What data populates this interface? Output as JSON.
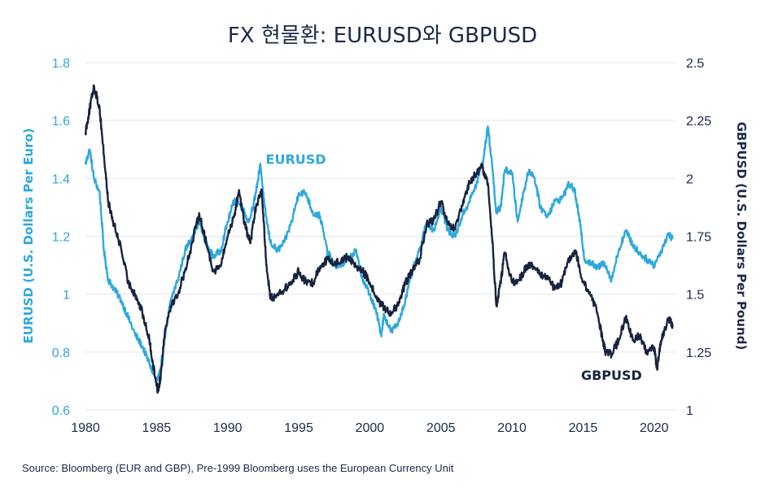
{
  "title": "FX 현물환: EURUSD와 GBPUSD",
  "source": "Source: Bloomberg (EUR and GBP), Pre-1999 Bloomberg uses the European Currency Unit",
  "colors": {
    "eurusd": "#2fa8dc",
    "gbpusd": "#17233f",
    "grid": "#e3e6ea",
    "text": "#1b2a4a"
  },
  "chart_data": {
    "type": "line",
    "title": "FX 현물환: EURUSD와 GBPUSD",
    "xlim": [
      1980,
      2021.5
    ],
    "x_ticks": [
      1980,
      1985,
      1990,
      1995,
      2000,
      2005,
      2010,
      2015,
      2020
    ],
    "x_tick_labels": [
      "1980",
      "1985",
      "1990",
      "1995",
      "2000",
      "2005",
      "2010",
      "2015",
      "2020"
    ],
    "y_left": {
      "label": "EURUSD (U.S. Dollars Per Euro)",
      "lim": [
        0.6,
        1.8
      ],
      "ticks": [
        0.6,
        0.8,
        1.0,
        1.2,
        1.4,
        1.6,
        1.8
      ],
      "tick_labels": [
        "0.6",
        "0.8",
        "1",
        "1.2",
        "1.4",
        "1.6",
        "1.8"
      ]
    },
    "y_right": {
      "label": "GBPUSD (U.S. Dollars Per Pound)",
      "lim": [
        1.0,
        2.5
      ],
      "ticks": [
        1.0,
        1.25,
        1.5,
        1.75,
        2.0,
        2.25,
        2.5
      ],
      "tick_labels": [
        "1",
        "1.25",
        "1.5",
        "1.75",
        "2",
        "2.25",
        "2.5"
      ]
    },
    "grid": true,
    "series": [
      {
        "name": "EURUSD",
        "axis": "left",
        "x": [
          1980.0,
          1980.3,
          1980.6,
          1981.0,
          1981.3,
          1981.6,
          1982.0,
          1982.5,
          1983.0,
          1983.5,
          1984.0,
          1984.5,
          1985.0,
          1985.2,
          1985.5,
          1986.0,
          1986.5,
          1987.0,
          1987.5,
          1988.0,
          1988.5,
          1989.0,
          1989.5,
          1990.0,
          1990.5,
          1991.0,
          1991.5,
          1992.0,
          1992.3,
          1992.6,
          1993.0,
          1993.5,
          1994.0,
          1994.5,
          1995.0,
          1995.5,
          1996.0,
          1996.5,
          1997.0,
          1997.5,
          1998.0,
          1998.5,
          1999.0,
          1999.5,
          2000.0,
          2000.5,
          2000.8,
          2001.0,
          2001.5,
          2002.0,
          2002.5,
          2003.0,
          2003.5,
          2004.0,
          2004.5,
          2005.0,
          2005.5,
          2006.0,
          2006.5,
          2007.0,
          2007.5,
          2008.0,
          2008.3,
          2008.6,
          2008.9,
          2009.2,
          2009.5,
          2010.0,
          2010.4,
          2010.8,
          2011.2,
          2011.6,
          2012.0,
          2012.5,
          2013.0,
          2013.5,
          2014.0,
          2014.4,
          2014.8,
          2015.1,
          2015.5,
          2016.0,
          2016.5,
          2017.0,
          2017.5,
          2018.0,
          2018.5,
          2019.0,
          2019.5,
          2020.0,
          2020.5,
          2021.0,
          2021.3
        ],
        "y": [
          1.45,
          1.5,
          1.4,
          1.35,
          1.15,
          1.05,
          1.02,
          0.98,
          0.92,
          0.86,
          0.82,
          0.76,
          0.7,
          0.72,
          0.82,
          0.98,
          1.05,
          1.15,
          1.2,
          1.25,
          1.17,
          1.13,
          1.15,
          1.25,
          1.33,
          1.3,
          1.25,
          1.35,
          1.45,
          1.3,
          1.18,
          1.15,
          1.18,
          1.25,
          1.35,
          1.35,
          1.28,
          1.27,
          1.15,
          1.1,
          1.1,
          1.12,
          1.15,
          1.05,
          1.0,
          0.93,
          0.86,
          0.93,
          0.87,
          0.9,
          0.98,
          1.08,
          1.15,
          1.25,
          1.22,
          1.3,
          1.22,
          1.2,
          1.27,
          1.32,
          1.38,
          1.47,
          1.58,
          1.45,
          1.28,
          1.3,
          1.43,
          1.42,
          1.25,
          1.35,
          1.43,
          1.4,
          1.3,
          1.27,
          1.32,
          1.33,
          1.38,
          1.36,
          1.24,
          1.12,
          1.11,
          1.09,
          1.11,
          1.05,
          1.15,
          1.22,
          1.17,
          1.14,
          1.12,
          1.1,
          1.15,
          1.21,
          1.19
        ]
      },
      {
        "name": "GBPUSD",
        "axis": "right",
        "x": [
          1980.0,
          1980.3,
          1980.6,
          1981.0,
          1981.3,
          1981.6,
          1982.0,
          1982.5,
          1983.0,
          1983.5,
          1984.0,
          1984.5,
          1984.8,
          1985.1,
          1985.3,
          1985.6,
          1986.0,
          1986.5,
          1987.0,
          1987.5,
          1988.0,
          1988.5,
          1989.0,
          1989.5,
          1990.0,
          1990.5,
          1990.8,
          1991.2,
          1991.6,
          1992.0,
          1992.4,
          1992.7,
          1993.0,
          1993.5,
          1994.0,
          1994.5,
          1995.0,
          1995.5,
          1996.0,
          1996.5,
          1997.0,
          1997.5,
          1998.0,
          1998.5,
          1999.0,
          1999.5,
          2000.0,
          2000.5,
          2001.0,
          2001.5,
          2002.0,
          2002.5,
          2003.0,
          2003.5,
          2004.0,
          2004.5,
          2005.0,
          2005.5,
          2006.0,
          2006.5,
          2007.0,
          2007.5,
          2007.9,
          2008.3,
          2008.6,
          2008.9,
          2009.2,
          2009.5,
          2010.0,
          2010.5,
          2011.0,
          2011.5,
          2012.0,
          2012.5,
          2013.0,
          2013.5,
          2014.0,
          2014.5,
          2015.0,
          2015.5,
          2016.0,
          2016.4,
          2016.6,
          2017.0,
          2017.5,
          2018.0,
          2018.5,
          2019.0,
          2019.5,
          2020.0,
          2020.2,
          2020.5,
          2021.0,
          2021.3
        ],
        "y": [
          2.2,
          2.3,
          2.4,
          2.3,
          2.1,
          1.9,
          1.8,
          1.7,
          1.55,
          1.5,
          1.42,
          1.3,
          1.18,
          1.08,
          1.15,
          1.35,
          1.45,
          1.5,
          1.6,
          1.72,
          1.85,
          1.72,
          1.6,
          1.62,
          1.75,
          1.85,
          1.95,
          1.8,
          1.72,
          1.88,
          1.95,
          1.65,
          1.48,
          1.5,
          1.52,
          1.55,
          1.6,
          1.55,
          1.55,
          1.62,
          1.65,
          1.63,
          1.65,
          1.66,
          1.62,
          1.6,
          1.55,
          1.48,
          1.44,
          1.42,
          1.45,
          1.55,
          1.6,
          1.65,
          1.8,
          1.82,
          1.9,
          1.8,
          1.78,
          1.88,
          1.98,
          2.02,
          2.05,
          1.98,
          1.75,
          1.45,
          1.55,
          1.68,
          1.55,
          1.56,
          1.62,
          1.62,
          1.58,
          1.58,
          1.52,
          1.55,
          1.65,
          1.68,
          1.55,
          1.5,
          1.42,
          1.3,
          1.25,
          1.24,
          1.3,
          1.4,
          1.3,
          1.32,
          1.25,
          1.27,
          1.18,
          1.3,
          1.39,
          1.37
        ]
      }
    ],
    "annotations": [
      {
        "text": "EURUSD",
        "x": 1994.8,
        "y_left": 1.45,
        "series": "EURUSD"
      },
      {
        "text": "GBPUSD",
        "x": 2017.0,
        "y_right": 1.13,
        "series": "GBPUSD"
      }
    ]
  }
}
